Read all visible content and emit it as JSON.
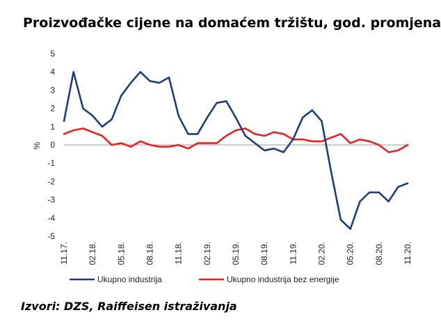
{
  "title": "Proizvođačke cijene na domaćem tržištu, god. promjena",
  "source": "Izvori: DZS, Raiffeisen istraživanja",
  "chart_data": {
    "type": "line",
    "ylabel": "%",
    "ylim": [
      -5,
      5
    ],
    "yticks": [
      5,
      4,
      3,
      2,
      1,
      0,
      -1,
      -2,
      -3,
      -4,
      -5
    ],
    "xlabels": [
      "11.17.",
      "02.18.",
      "05.18.",
      "08.18.",
      "11.18.",
      "02.19.",
      "05.19.",
      "08.19.",
      "11.19.",
      "02.20.",
      "05.20.",
      "08.20.",
      "11.20."
    ],
    "x": [
      "11.17.",
      "12.17.",
      "01.18.",
      "02.18.",
      "03.18.",
      "04.18.",
      "05.18.",
      "06.18.",
      "07.18.",
      "08.18.",
      "09.18.",
      "10.18.",
      "11.18.",
      "12.18.",
      "01.19.",
      "02.19.",
      "03.19.",
      "04.19.",
      "05.19.",
      "06.19.",
      "07.19.",
      "08.19.",
      "09.19.",
      "10.19.",
      "11.19.",
      "12.19.",
      "01.20.",
      "02.20.",
      "03.20.",
      "04.20.",
      "05.20.",
      "06.20.",
      "07.20.",
      "08.20.",
      "09.20.",
      "10.20.",
      "11.20."
    ],
    "legend_position": "bottom",
    "series": [
      {
        "name": "Ukupno industrija",
        "color": "#1f3c7a",
        "values": [
          1.3,
          4.0,
          2.0,
          1.6,
          1.0,
          1.4,
          2.7,
          3.4,
          4.0,
          3.5,
          3.4,
          3.7,
          1.6,
          0.6,
          0.6,
          1.5,
          2.3,
          2.4,
          1.5,
          0.5,
          0.1,
          -0.3,
          -0.2,
          -0.4,
          0.3,
          1.5,
          1.9,
          1.3,
          -1.5,
          -4.1,
          -4.6,
          -3.1,
          -2.6,
          -2.6,
          -3.1,
          -2.3,
          -2.1
        ]
      },
      {
        "name": "Ukupno industrija bez energije",
        "color": "#e8201e",
        "values": [
          0.6,
          0.8,
          0.9,
          0.7,
          0.5,
          0.0,
          0.1,
          -0.1,
          0.2,
          0.0,
          -0.1,
          -0.1,
          0.0,
          -0.2,
          0.1,
          0.1,
          0.1,
          0.5,
          0.8,
          0.9,
          0.6,
          0.5,
          0.7,
          0.6,
          0.3,
          0.3,
          0.2,
          0.2,
          0.4,
          0.6,
          0.1,
          0.3,
          0.2,
          0.0,
          -0.4,
          -0.3,
          0.0
        ]
      }
    ]
  }
}
